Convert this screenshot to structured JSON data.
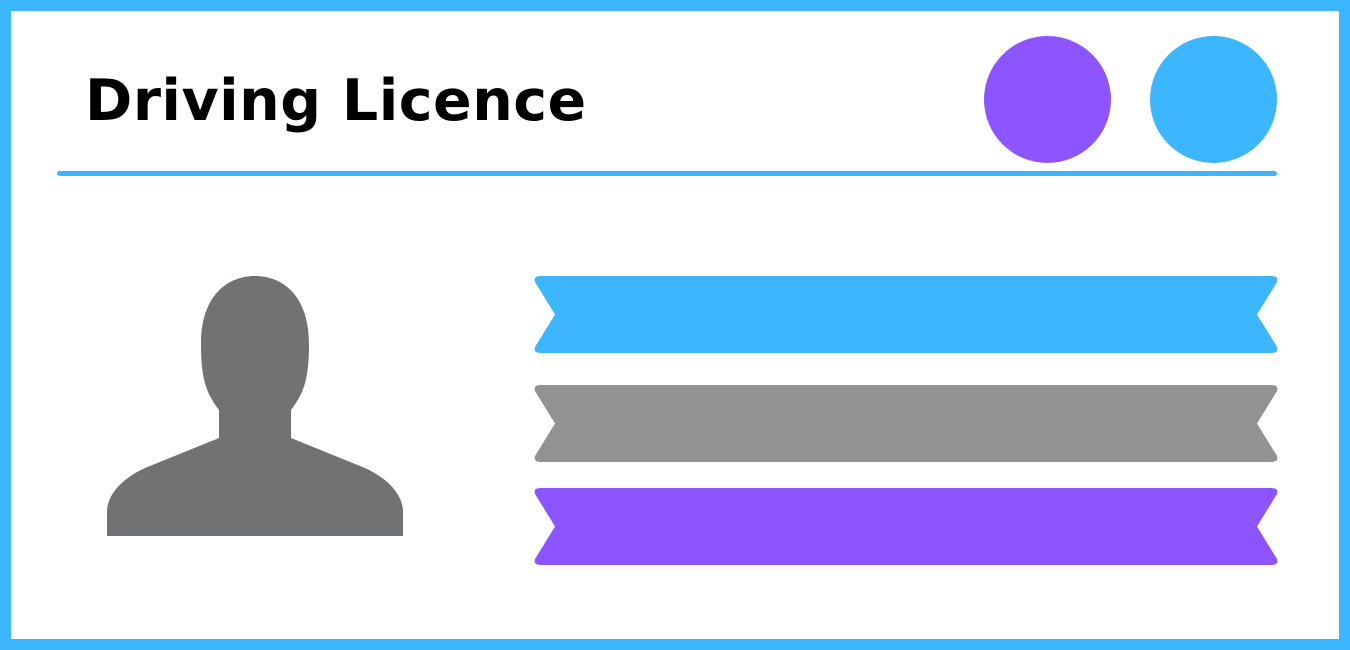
{
  "card": {
    "title": "Driving Licence",
    "border_color": "#3bb6ff"
  },
  "indicators": [
    {
      "name": "purple-dot",
      "color": "#8c55ff"
    },
    {
      "name": "blue-dot",
      "color": "#3bb6ff"
    }
  ],
  "divider": {
    "color": "#3bb6ff"
  },
  "avatar": {
    "icon": "person-silhouette-icon",
    "color": "#717274"
  },
  "ribbons": [
    {
      "color": "#3bb6ff"
    },
    {
      "color": "#929292"
    },
    {
      "color": "#8c55ff"
    }
  ]
}
